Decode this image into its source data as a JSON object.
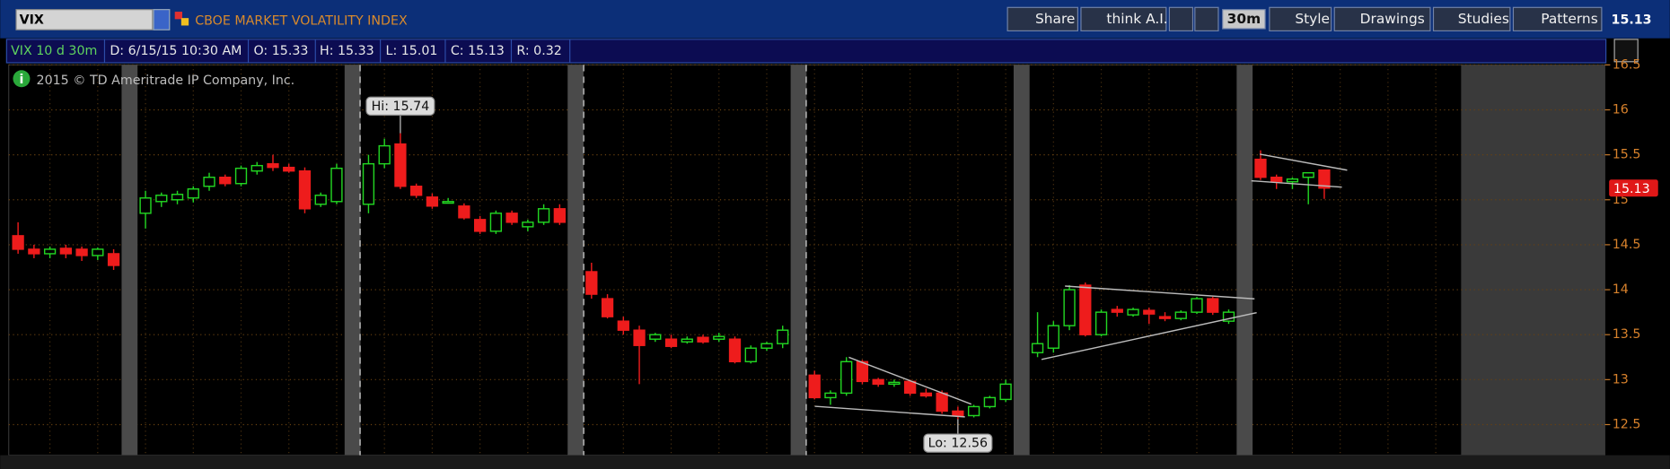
{
  "toolbar": {
    "symbol": "VIX",
    "description": "CBOE MARKET VOLATILITY INDEX",
    "buttons": [
      "Share",
      "think A.I.",
      "Style",
      "Drawings",
      "Studies",
      "Patterns"
    ],
    "aggregation": "30m",
    "last": "15.13"
  },
  "info_bar": [
    "VIX 10 d 30m",
    "D: 6/15/15 10:30 AM",
    "O: 15.33",
    "H: 15.33",
    "L: 15.01",
    "C: 15.13",
    "R: 0.32"
  ],
  "copyright": "2015 © TD Ameritrade IP Company, Inc.",
  "chart_data": {
    "type": "candlestick",
    "open": [
      14.6,
      14.45,
      14.4,
      14.46,
      14.45,
      14.38,
      14.4,
      null,
      14.85,
      14.98,
      15.0,
      15.02,
      15.15,
      15.25,
      15.18,
      15.32,
      15.4,
      15.36,
      15.32,
      14.95,
      14.98,
      null,
      14.95,
      15.4,
      15.62,
      15.15,
      15.03,
      14.98,
      14.93,
      14.78,
      14.65,
      14.85,
      14.7,
      14.75,
      14.9,
      null,
      14.2,
      13.9,
      13.65,
      13.55,
      13.45,
      13.45,
      13.42,
      13.47,
      13.45,
      13.45,
      13.2,
      13.35,
      13.4,
      null,
      13.05,
      12.8,
      12.85,
      13.2,
      13.0,
      12.95,
      12.98,
      12.85,
      12.85,
      12.65,
      12.6,
      12.7,
      12.78,
      null,
      13.3,
      13.35,
      13.6,
      14.05,
      13.5,
      13.78,
      13.72,
      13.77,
      13.7,
      13.68,
      13.75,
      13.9,
      13.65,
      null,
      15.45,
      15.25,
      15.2,
      15.25,
      15.33,
      null,
      null,
      null,
      null,
      null,
      null,
      null,
      null
    ],
    "high": [
      14.75,
      14.5,
      14.48,
      14.5,
      14.48,
      14.47,
      14.45,
      null,
      15.1,
      15.08,
      15.1,
      15.15,
      15.3,
      15.28,
      15.38,
      15.42,
      15.5,
      15.4,
      15.36,
      15.08,
      15.4,
      null,
      15.5,
      15.68,
      15.74,
      15.18,
      15.07,
      15.02,
      14.96,
      14.82,
      14.88,
      14.88,
      14.78,
      14.95,
      14.95,
      null,
      14.3,
      13.95,
      13.7,
      13.6,
      13.52,
      13.5,
      13.48,
      13.5,
      13.52,
      13.48,
      13.38,
      13.42,
      13.6,
      null,
      13.1,
      12.88,
      13.25,
      13.22,
      13.02,
      13.0,
      13.0,
      12.9,
      12.88,
      12.7,
      12.72,
      12.82,
      13.0,
      null,
      13.75,
      13.65,
      14.05,
      14.08,
      13.78,
      13.82,
      13.8,
      13.8,
      13.75,
      13.77,
      13.92,
      13.92,
      13.78,
      null,
      15.55,
      15.28,
      15.25,
      15.3,
      15.33,
      null,
      null,
      null,
      null,
      null,
      null,
      null,
      null
    ],
    "low": [
      14.4,
      14.35,
      14.35,
      14.35,
      14.32,
      14.33,
      14.22,
      null,
      14.68,
      14.92,
      14.95,
      14.97,
      15.1,
      15.15,
      15.15,
      15.28,
      15.32,
      15.3,
      14.85,
      14.92,
      14.95,
      null,
      14.85,
      15.35,
      15.12,
      15.02,
      14.9,
      14.96,
      14.78,
      14.62,
      14.62,
      14.72,
      14.65,
      14.72,
      14.72,
      null,
      13.9,
      13.68,
      13.5,
      12.95,
      13.42,
      13.35,
      13.4,
      13.4,
      13.42,
      13.18,
      13.18,
      13.32,
      13.35,
      null,
      12.78,
      12.72,
      12.82,
      12.95,
      12.92,
      12.92,
      12.82,
      12.8,
      12.62,
      12.56,
      12.58,
      12.68,
      12.75,
      null,
      13.25,
      13.3,
      13.55,
      13.48,
      13.48,
      13.7,
      13.7,
      13.62,
      13.65,
      13.66,
      13.73,
      13.72,
      13.62,
      null,
      15.22,
      15.12,
      15.12,
      14.95,
      15.01,
      null,
      null,
      null,
      null,
      null,
      null,
      null,
      null
    ],
    "close": [
      14.45,
      14.4,
      14.45,
      14.4,
      14.38,
      14.45,
      14.27,
      null,
      15.02,
      15.05,
      15.06,
      15.12,
      15.25,
      15.18,
      15.35,
      15.38,
      15.36,
      15.32,
      14.9,
      15.05,
      15.35,
      null,
      15.4,
      15.6,
      15.15,
      15.05,
      14.93,
      14.98,
      14.8,
      14.65,
      14.85,
      14.75,
      14.75,
      14.9,
      14.75,
      null,
      13.95,
      13.7,
      13.55,
      13.38,
      13.5,
      13.37,
      13.45,
      13.42,
      13.48,
      13.2,
      13.35,
      13.4,
      13.55,
      null,
      12.8,
      12.85,
      13.2,
      12.98,
      12.95,
      12.97,
      12.85,
      12.82,
      12.65,
      12.6,
      12.7,
      12.8,
      12.95,
      null,
      13.4,
      13.6,
      14.0,
      13.5,
      13.75,
      13.75,
      13.78,
      13.73,
      13.68,
      13.75,
      13.9,
      13.75,
      13.75,
      null,
      15.25,
      15.2,
      15.23,
      15.3,
      15.13,
      null,
      null,
      null,
      null,
      null,
      null,
      null,
      null
    ],
    "up_color": "#22d622",
    "down_color": "#ee1c1c",
    "ylim": [
      12.16,
      16.5
    ],
    "yticks": [
      12.5,
      13,
      13.5,
      14,
      14.5,
      15,
      15.5,
      16,
      16.5
    ],
    "grid": true,
    "annotations": [
      {
        "label": "Hi: 15.74",
        "value": 15.74
      },
      {
        "label": "Lo: 12.56",
        "value": 12.56
      }
    ],
    "last_price": 15.13
  }
}
